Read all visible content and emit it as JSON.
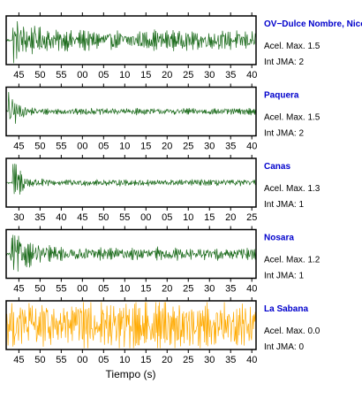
{
  "chart_data": {
    "type": "line",
    "title": "",
    "xlabel": "Tiempo (s)",
    "ylabel": "",
    "grid": false,
    "panels": [
      {
        "name": "OV−Dulce Nombre, Nicoya",
        "name_color": "#0000cc",
        "line_color": "#1a6a1a",
        "accel": "Acel. Max. 1.5",
        "intensity": "Int JMA: 2",
        "tick_labels": [
          "45",
          "50",
          "55",
          "00",
          "05",
          "10",
          "15",
          "20",
          "25",
          "30",
          "35",
          "40"
        ],
        "x_range": [
          42,
          101
        ],
        "onset": 43.5,
        "envelope": {
          "peak": 0.95,
          "decay": 0.05,
          "floor": 0.35
        }
      },
      {
        "name": "Paquera",
        "name_color": "#0000cc",
        "line_color": "#1a6a1a",
        "accel": "Acel. Max. 1.5",
        "intensity": "Int JMA: 2",
        "tick_labels": [
          "45",
          "50",
          "55",
          "00",
          "05",
          "10",
          "15",
          "20",
          "25",
          "30",
          "35",
          "40"
        ],
        "x_range": [
          42,
          101
        ],
        "onset": 42.5,
        "envelope": {
          "peak": 1.0,
          "decay": 0.12,
          "floor": 0.12
        }
      },
      {
        "name": "Canas",
        "name_color": "#0000cc",
        "line_color": "#1a6a1a",
        "accel": "Acel. Max. 1.3",
        "intensity": "Int JMA: 1",
        "tick_labels": [
          "30",
          "35",
          "40",
          "45",
          "50",
          "55",
          "00",
          "05",
          "10",
          "15",
          "20",
          "25"
        ],
        "x_range": [
          28,
          87
        ],
        "onset": 29.5,
        "envelope": {
          "peak": 1.0,
          "decay": 0.1,
          "floor": 0.12
        }
      },
      {
        "name": "Nosara",
        "name_color": "#0000cc",
        "line_color": "#1a6a1a",
        "accel": "Acel. Max. 1.2",
        "intensity": "Int JMA: 1",
        "tick_labels": [
          "45",
          "50",
          "55",
          "00",
          "05",
          "10",
          "15",
          "20",
          "25",
          "30",
          "35",
          "40"
        ],
        "x_range": [
          42,
          101
        ],
        "onset": 43.0,
        "envelope": {
          "peak": 0.9,
          "decay": 0.05,
          "floor": 0.22
        }
      },
      {
        "name": "La Sabana",
        "name_color": "#0000cc",
        "line_color": "#ffaa00",
        "accel": "Acel. Max. 0.0",
        "intensity": "Int JMA: 0",
        "tick_labels": [
          "45",
          "50",
          "55",
          "00",
          "05",
          "10",
          "15",
          "20",
          "25",
          "30",
          "35",
          "40"
        ],
        "x_range": [
          42,
          101
        ],
        "onset": 42.0,
        "envelope": {
          "peak": 0.9,
          "decay": 0.0,
          "floor": 0.9
        }
      }
    ]
  }
}
